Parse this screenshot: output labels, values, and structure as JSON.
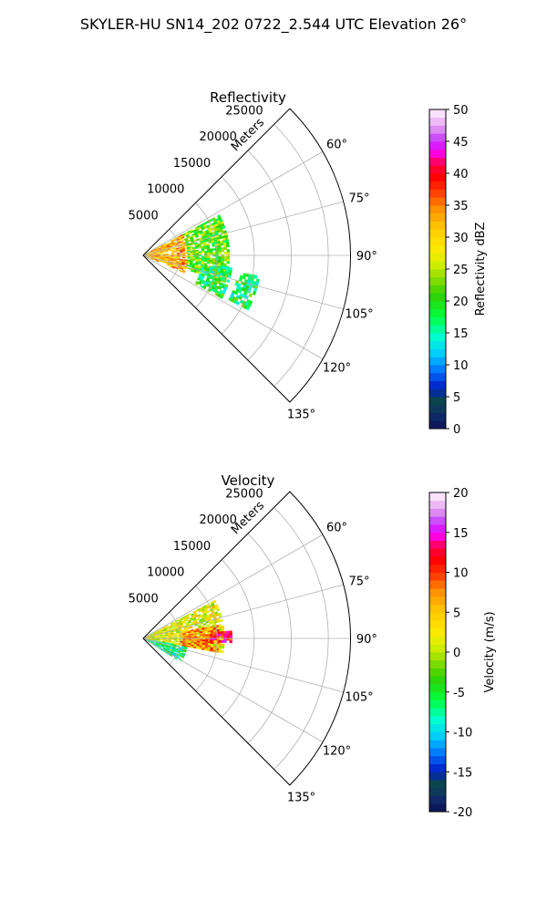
{
  "suptitle": "SKYLER-HU  SN14_202  0722_2.544 UTC Elevation 26°",
  "radial_axis_label": "Meters",
  "range_ticks": [
    "5000",
    "10000",
    "15000",
    "20000",
    "25000"
  ],
  "azimuth_ticks": [
    "60°",
    "75°",
    "90°",
    "105°",
    "120°",
    "135°"
  ],
  "chart_data": [
    {
      "type": "polar-ppi",
      "title": "Reflectivity",
      "field": "Reflectivity",
      "colorbar_label": "Reflectivity dBZ",
      "colorbar_ticks": [
        "0",
        "5",
        "10",
        "15",
        "20",
        "25",
        "30",
        "35",
        "40",
        "45",
        "50"
      ],
      "vmin": 0,
      "vmax": 50,
      "r_range_m": [
        0,
        28000
      ],
      "theta_range_deg": [
        45,
        135
      ],
      "r_ticks_m": [
        5000,
        10000,
        15000,
        20000,
        25000
      ],
      "theta_ticks_deg": [
        60,
        75,
        90,
        105,
        120,
        135
      ],
      "grid": true,
      "echo_regions": [
        {
          "az_min": 62,
          "az_max": 112,
          "r_min_m": 0,
          "r_max_m": 6000,
          "typical_value": 32
        },
        {
          "az_min": 62,
          "az_max": 108,
          "r_min_m": 6000,
          "r_max_m": 11500,
          "typical_value": 22
        },
        {
          "az_min": 98,
          "az_max": 118,
          "r_min_m": 8000,
          "r_max_m": 12000,
          "typical_value": 18
        },
        {
          "az_min": 100,
          "az_max": 116,
          "r_min_m": 13000,
          "r_max_m": 16000,
          "typical_value": 18
        }
      ]
    },
    {
      "type": "polar-ppi",
      "title": "Velocity",
      "field": "Velocity",
      "colorbar_label": "Velocity (m/s)",
      "colorbar_ticks": [
        "-20",
        "-15",
        "-10",
        "-5",
        "0",
        "5",
        "10",
        "15",
        "20"
      ],
      "vmin": -20,
      "vmax": 20,
      "r_range_m": [
        0,
        28000
      ],
      "theta_range_deg": [
        45,
        135
      ],
      "r_ticks_m": [
        5000,
        10000,
        15000,
        20000,
        25000
      ],
      "theta_ticks_deg": [
        60,
        75,
        90,
        105,
        120,
        135
      ],
      "grid": true,
      "echo_regions": [
        {
          "az_min": 100,
          "az_max": 122,
          "r_min_m": 0,
          "r_max_m": 6000,
          "typical_value": -7
        },
        {
          "az_min": 62,
          "az_max": 100,
          "r_min_m": 0,
          "r_max_m": 11000,
          "typical_value": 2
        },
        {
          "az_min": 80,
          "az_max": 100,
          "r_min_m": 5000,
          "r_max_m": 10000,
          "typical_value": 7
        },
        {
          "az_min": 85,
          "az_max": 92,
          "r_min_m": 9000,
          "r_max_m": 12000,
          "typical_value": 12
        }
      ]
    }
  ]
}
